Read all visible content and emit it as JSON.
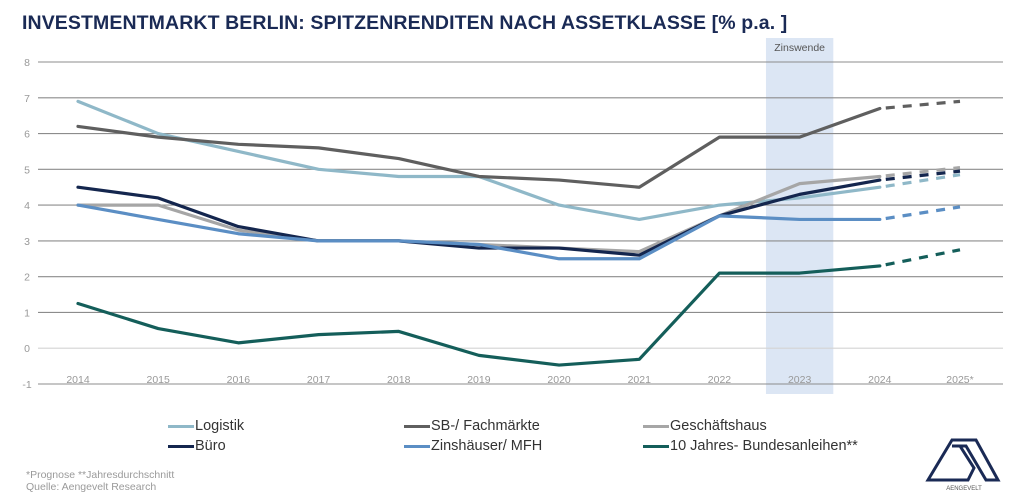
{
  "title": "INVESTMENTMARKT BERLIN: SPITZENRENDITEN NACH ASSETKLASSE [% p.a. ]",
  "chart_data": {
    "type": "line",
    "title": "INVESTMENTMARKT BERLIN: SPITZENRENDITEN NACH ASSETKLASSE [% p.a. ]",
    "xlabel": "",
    "ylabel": "",
    "x": [
      "2014",
      "2015",
      "2016",
      "2017",
      "2018",
      "2019",
      "2020",
      "2021",
      "2022",
      "2023",
      "2024",
      "2025*"
    ],
    "ylim": [
      -1,
      8
    ],
    "yticks": [
      -1,
      0,
      1,
      2,
      3,
      4,
      5,
      6,
      7,
      8
    ],
    "grid": true,
    "forecast_from_index": 10,
    "highlight": {
      "label": "Zinswende",
      "x": "2023",
      "color": "#dce6f4"
    },
    "series": [
      {
        "name": "Logistik",
        "color": "#8fb8c8",
        "values": [
          6.9,
          6.0,
          5.5,
          5.0,
          4.8,
          4.8,
          4.0,
          3.6,
          4.0,
          4.2,
          4.5,
          4.85
        ]
      },
      {
        "name": "SB-/ Fachmärkte",
        "color": "#5f5f5f",
        "values": [
          6.2,
          5.9,
          5.7,
          5.6,
          5.3,
          4.8,
          4.7,
          4.5,
          5.9,
          5.9,
          6.7,
          6.9
        ]
      },
      {
        "name": "Geschäftshaus",
        "color": "#a6a6a6",
        "values": [
          4.0,
          4.0,
          3.3,
          3.0,
          3.0,
          2.9,
          2.8,
          2.7,
          3.7,
          4.6,
          4.8,
          5.05
        ]
      },
      {
        "name": "Büro",
        "color": "#14264e",
        "values": [
          4.5,
          4.2,
          3.4,
          3.0,
          3.0,
          2.8,
          2.8,
          2.6,
          3.7,
          4.3,
          4.7,
          4.95
        ]
      },
      {
        "name": "Zinshäuser/ MFH",
        "color": "#5b8ec4",
        "values": [
          4.0,
          3.6,
          3.2,
          3.0,
          3.0,
          2.9,
          2.5,
          2.5,
          3.7,
          3.6,
          3.6,
          3.95
        ]
      },
      {
        "name": "10 Jahres- Bundesanleihen**",
        "color": "#145e5a",
        "values": [
          1.25,
          0.55,
          0.15,
          0.38,
          0.47,
          -0.2,
          -0.47,
          -0.31,
          2.1,
          2.1,
          2.3,
          2.75
        ]
      }
    ],
    "legend": "bottom"
  },
  "footnotes": {
    "line1": "*Prognose  **Jahresdurchschnitt",
    "line2": "Quelle: Aengevelt Research"
  },
  "logo": {
    "text": "AENGEVELT"
  }
}
